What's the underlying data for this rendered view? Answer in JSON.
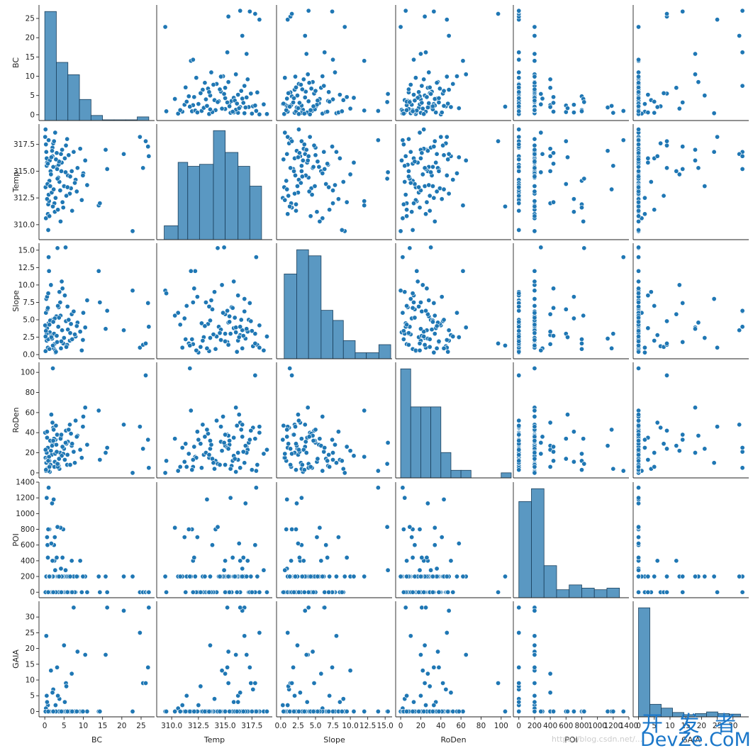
{
  "chart_data": {
    "type": "scatter",
    "variables": [
      "BC",
      "Temp",
      "Slope",
      "RoDen",
      "POI",
      "GAIA"
    ],
    "axes": {
      "BC": {
        "lim": [
          -1.5,
          28.5
        ],
        "ticks": [
          0,
          5,
          10,
          15,
          20,
          25
        ]
      },
      "Temp": {
        "lim": [
          308.6,
          319.4
        ],
        "ticks": [
          310.0,
          312.5,
          315.0,
          317.5
        ]
      },
      "Slope": {
        "lim": [
          -0.6,
          16.0
        ],
        "ticks": [
          0.0,
          2.5,
          5.0,
          7.5,
          10.0,
          12.5,
          15.0
        ]
      },
      "RoDen": {
        "lim": [
          -5,
          110
        ],
        "ticks": [
          0,
          20,
          40,
          60,
          80,
          100
        ]
      },
      "POI": {
        "lim": [
          -70,
          1400
        ],
        "ticks": [
          0,
          200,
          400,
          600,
          800,
          1000,
          1200,
          1400
        ]
      },
      "GAIA": {
        "lim": [
          -1.7,
          35
        ],
        "ticks": [
          0,
          5,
          10,
          15,
          20,
          25,
          30
        ]
      }
    },
    "hist_bins": {
      "BC": {
        "edges": [
          0,
          3,
          6,
          9,
          12,
          15,
          18,
          21,
          24,
          27
        ],
        "counts": [
          15,
          8,
          6.3,
          2.9,
          0.7,
          0.1,
          0.1,
          0.1,
          0.5
        ],
        "max_x": 27
      },
      "Temp": {
        "edges": [
          309.3,
          310.6,
          311.5,
          312.6,
          313.9,
          315.0,
          316.2,
          317.3,
          318.4
        ],
        "counts": [
          0.7,
          3.9,
          3.7,
          3.8,
          5.5,
          4.4,
          3.7,
          2.7
        ],
        "max_x": 318.8
      },
      "Slope": {
        "edges": [
          0.5,
          2.3,
          4.0,
          5.8,
          7.5,
          9.0,
          10.7,
          12.3,
          14.1,
          15.8
        ],
        "counts": [
          4.2,
          5.4,
          5.1,
          2.4,
          1.9,
          0.9,
          0.3,
          0.3,
          0.7
        ]
      },
      "RoDen": {
        "edges": [
          0,
          10,
          20,
          30,
          40,
          50,
          60,
          70,
          80,
          90,
          100,
          110
        ],
        "counts": [
          4.3,
          2.8,
          2.8,
          2.8,
          1.0,
          0.3,
          0.3,
          0.0,
          0.0,
          0.0,
          0.2
        ]
      },
      "POI": {
        "edges": [
          0,
          160,
          320,
          480,
          640,
          800,
          960,
          1120,
          1280
        ],
        "counts": [
          6.0,
          6.8,
          2.0,
          0.5,
          0.8,
          0.6,
          0.5,
          0.6,
          0.5
        ]
      },
      "GAIA": {
        "edges": [
          0,
          3.6,
          7.2,
          10.8,
          14.4,
          18.0,
          21.6,
          25.2,
          28.8,
          32.4
        ],
        "counts": [
          20.0,
          2.3,
          1.6,
          0.8,
          0.4,
          0.6,
          0.9,
          0.6,
          0.5
        ]
      }
    },
    "points": [
      [
        1.5,
        315.0,
        3.0,
        8,
        200,
        0
      ],
      [
        0.2,
        313.5,
        0.5,
        15,
        0,
        0
      ],
      [
        0.5,
        316.2,
        2.0,
        20,
        200,
        5
      ],
      [
        1.0,
        312.8,
        4.5,
        5,
        0,
        0
      ],
      [
        0.8,
        311.0,
        1.0,
        25,
        200,
        2
      ],
      [
        2.0,
        317.2,
        5.0,
        30,
        0,
        0
      ],
      [
        0.3,
        310.6,
        6.0,
        2,
        200,
        1
      ],
      [
        1.2,
        314.1,
        0.8,
        12,
        800,
        0
      ],
      [
        0.6,
        315.8,
        3.8,
        35,
        200,
        3
      ],
      [
        1.8,
        313.0,
        2.5,
        18,
        0,
        0
      ],
      [
        0.4,
        316.8,
        8.0,
        10,
        200,
        24
      ],
      [
        2.5,
        312.0,
        1.5,
        6,
        400,
        0
      ],
      [
        0.1,
        318.2,
        4.2,
        40,
        0,
        0
      ],
      [
        1.6,
        314.7,
        10.0,
        22,
        200,
        13
      ],
      [
        0.9,
        311.9,
        2.2,
        3,
        800,
        0
      ],
      [
        3.0,
        315.4,
        5.5,
        28,
        200,
        0
      ],
      [
        2.2,
        317.6,
        1.2,
        45,
        0,
        7
      ],
      [
        0.7,
        313.8,
        6.5,
        14,
        600,
        0
      ],
      [
        1.3,
        316.0,
        3.2,
        1,
        200,
        0
      ],
      [
        2.8,
        312.5,
        0.3,
        33,
        0,
        2
      ],
      [
        3.5,
        314.4,
        4.0,
        9,
        200,
        0
      ],
      [
        2.0,
        316.4,
        2.8,
        50,
        400,
        6
      ],
      [
        4.0,
        313.2,
        7.5,
        20,
        0,
        0
      ],
      [
        3.2,
        315.2,
        1.8,
        38,
        200,
        14
      ],
      [
        2.6,
        311.2,
        5.2,
        11,
        700,
        0
      ],
      [
        4.5,
        317.0,
        3.5,
        26,
        200,
        0
      ],
      [
        3.8,
        314.0,
        9.0,
        4,
        0,
        4
      ],
      [
        1.1,
        312.2,
        12.0,
        16,
        200,
        0
      ],
      [
        4.2,
        316.6,
        0.9,
        36,
        300,
        0
      ],
      [
        5.0,
        313.6,
        2.4,
        24,
        200,
        21
      ],
      [
        3.6,
        315.6,
        6.8,
        7,
        0,
        0
      ],
      [
        5.5,
        317.4,
        4.8,
        42,
        200,
        9
      ],
      [
        4.8,
        311.6,
        1.6,
        19,
        800,
        0
      ],
      [
        6.0,
        314.6,
        3.6,
        31,
        200,
        0
      ],
      [
        5.2,
        316.2,
        8.5,
        13,
        0,
        3
      ],
      [
        6.5,
        312.9,
        2.0,
        48,
        200,
        0
      ],
      [
        7.0,
        315.0,
        5.8,
        27,
        400,
        12
      ],
      [
        5.8,
        318.0,
        1.4,
        8,
        200,
        0
      ],
      [
        6.8,
        313.4,
        4.4,
        39,
        0,
        0
      ],
      [
        7.5,
        316.8,
        6.2,
        21,
        200,
        33
      ],
      [
        8.0,
        314.2,
        2.6,
        52,
        0,
        0
      ],
      [
        3.4,
        311.4,
        7.0,
        6,
        200,
        5
      ],
      [
        2.4,
        317.8,
        3.0,
        34,
        600,
        0
      ],
      [
        4.4,
        315.8,
        10.5,
        17,
        200,
        0
      ],
      [
        5.6,
        312.7,
        1.1,
        29,
        0,
        8
      ],
      [
        6.2,
        316.5,
        5.0,
        43,
        200,
        0
      ],
      [
        7.8,
        313.9,
        2.9,
        10,
        0,
        0
      ],
      [
        8.5,
        315.3,
        4.6,
        37,
        200,
        19
      ],
      [
        9.2,
        317.1,
        3.3,
        23,
        400,
        0
      ],
      [
        10.0,
        314.8,
        6.0,
        56,
        200,
        0
      ],
      [
        9.6,
        312.3,
        0.6,
        15,
        0,
        0
      ],
      [
        10.5,
        316.0,
        3.9,
        65,
        200,
        18
      ],
      [
        11.0,
        313.7,
        7.8,
        28,
        0,
        0
      ],
      [
        14.0,
        311.8,
        12.0,
        62,
        200,
        0
      ],
      [
        14.3,
        312.0,
        7.5,
        13,
        0,
        0
      ],
      [
        15.8,
        317.0,
        3.7,
        20,
        200,
        18
      ],
      [
        16.2,
        315.2,
        6.3,
        25,
        0,
        33
      ],
      [
        20.5,
        316.6,
        3.5,
        48,
        200,
        32
      ],
      [
        22.8,
        309.4,
        9.2,
        0,
        200,
        0
      ],
      [
        24.7,
        318.2,
        1.0,
        46,
        0,
        25
      ],
      [
        25.5,
        315.3,
        1.4,
        24,
        0,
        9
      ],
      [
        26.2,
        317.8,
        1.6,
        97,
        0,
        9
      ],
      [
        26.8,
        317.3,
        7.4,
        33,
        0,
        14
      ],
      [
        27.0,
        316.4,
        4.0,
        5,
        0,
        33
      ],
      [
        1.9,
        316.9,
        2.3,
        27,
        1130,
        0
      ],
      [
        2.3,
        313.3,
        0.9,
        43,
        1180,
        0
      ],
      [
        1.0,
        317.9,
        14.0,
        2,
        1330,
        0
      ],
      [
        0.5,
        315.5,
        3.0,
        4,
        1200,
        0
      ],
      [
        4.1,
        310.3,
        5.6,
        34,
        820,
        0
      ],
      [
        3.3,
        314.3,
        15.3,
        9,
        830,
        0
      ],
      [
        0.6,
        312.4,
        8.3,
        41,
        700,
        0
      ],
      [
        1.7,
        316.3,
        2.5,
        58,
        620,
        0
      ],
      [
        5.4,
        314.9,
        15.4,
        30,
        280,
        0
      ],
      [
        2.7,
        318.6,
        0.6,
        19,
        280,
        0
      ],
      [
        8.3,
        313.1,
        4.1,
        36,
        200,
        0
      ],
      [
        9.9,
        314.6,
        2.1,
        46,
        200,
        0
      ],
      [
        2.1,
        311.7,
        1.3,
        104,
        200,
        0
      ],
      [
        0.8,
        315.7,
        6.7,
        12,
        440,
        0
      ],
      [
        3.1,
        316.7,
        2.7,
        21,
        440,
        0
      ],
      [
        4.6,
        312.1,
        9.5,
        26,
        440,
        0
      ],
      [
        6.6,
        314.5,
        3.1,
        8,
        200,
        0
      ],
      [
        1.4,
        313.6,
        4.9,
        32,
        200,
        0
      ],
      [
        3.7,
        315.9,
        5.3,
        14,
        200,
        0
      ],
      [
        0.3,
        317.5,
        3.4,
        3,
        0,
        0
      ],
      [
        7.1,
        311.3,
        2.2,
        29,
        0,
        0
      ],
      [
        2.9,
        316.1,
        0.4,
        47,
        0,
        0
      ],
      [
        5.9,
        313.5,
        6.9,
        18,
        0,
        0
      ],
      [
        4.3,
        315.0,
        1.9,
        38,
        0,
        0
      ],
      [
        1.2,
        310.8,
        4.3,
        6,
        200,
        0
      ],
      [
        0.2,
        318.9,
        2.6,
        23,
        0,
        0
      ],
      [
        0.9,
        309.5,
        8.8,
        12,
        0,
        0
      ],
      [
        2.2,
        315.4,
        4.7,
        32,
        0,
        0
      ]
    ]
  },
  "watermark": {
    "url": "https://blog.csdn.net/...",
    "logo_top": "开 发 者",
    "logo_bottom": "DevZe.CoM"
  }
}
